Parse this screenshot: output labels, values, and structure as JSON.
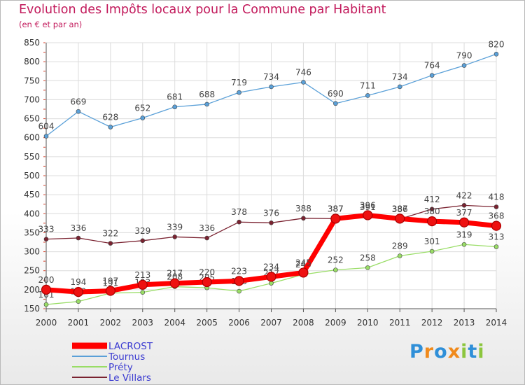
{
  "title": "Evolution des Impôts locaux pour la Commune par Habitant",
  "subtitle": "(en € et par an)",
  "logo": {
    "text": "Proxiti",
    "letters": [
      {
        "ch": "P",
        "color": "#2f8fd8"
      },
      {
        "ch": "r",
        "color": "#f08a1c"
      },
      {
        "ch": "o",
        "color": "#2f8fd8"
      },
      {
        "ch": "x",
        "color": "#f08a1c"
      },
      {
        "ch": "i",
        "color": "#8cc63e"
      },
      {
        "ch": "t",
        "color": "#2f8fd8"
      },
      {
        "ch": "i",
        "color": "#8cc63e"
      }
    ]
  },
  "chart_data": {
    "type": "line",
    "title": "Evolution des Impôts locaux pour la Commune par Habitant",
    "subtitle": "(en € et par an)",
    "x": [
      2000,
      2001,
      2002,
      2003,
      2004,
      2005,
      2006,
      2007,
      2008,
      2009,
      2010,
      2011,
      2012,
      2013,
      2014
    ],
    "ylim": [
      150,
      850
    ],
    "yticks": [
      150,
      200,
      250,
      300,
      350,
      400,
      450,
      500,
      550,
      600,
      650,
      700,
      750,
      800,
      850
    ],
    "grid": true,
    "legend": "bottom-left",
    "series": [
      {
        "name": "LACROST",
        "color": "#ff0000",
        "values": [
          200,
          194,
          197,
          213,
          217,
          220,
          223,
          234,
          245,
          387,
          396,
          387,
          380,
          377,
          368
        ]
      },
      {
        "name": "Tournus",
        "color": "#5aa0d8",
        "values": [
          604,
          669,
          628,
          652,
          681,
          688,
          719,
          734,
          746,
          690,
          711,
          734,
          764,
          790,
          820
        ]
      },
      {
        "name": "Préty",
        "color": "#99dd66",
        "values": [
          161,
          169,
          191,
          193,
          208,
          205,
          196,
          217,
          240,
          252,
          258,
          289,
          301,
          319,
          313
        ]
      },
      {
        "name": "Le Villars",
        "color": "#7a2230",
        "values": [
          333,
          336,
          322,
          329,
          339,
          336,
          378,
          376,
          388,
          387,
          391,
          386,
          412,
          422,
          418
        ]
      }
    ]
  }
}
